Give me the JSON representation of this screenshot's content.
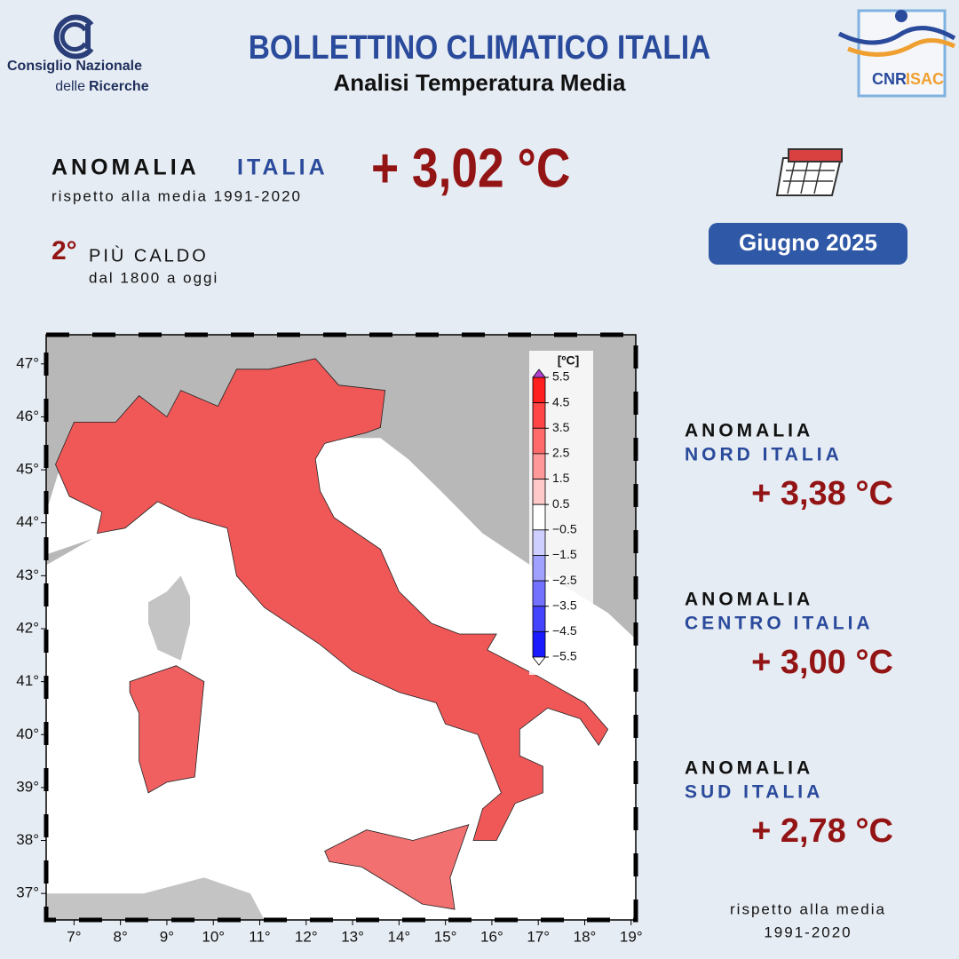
{
  "logo_left": {
    "line1": "Consiglio Nazionale",
    "line2a": "delle",
    "line2b": "Ricerche"
  },
  "header": {
    "title": "BOLLETTINO CLIMATICO ITALIA",
    "subtitle": "Analisi Temperatura Media"
  },
  "logo_right": {
    "cnr": "CNR",
    "isac": "ISAC"
  },
  "summary": {
    "label": "ANOMALIA",
    "region": "ITALIA",
    "value": "+ 3,02 °C",
    "reference": "rispetto alla media 1991-2020",
    "rank": "2°",
    "rank_text": "PIÙ CALDO",
    "rank_since": "dal 1800 a oggi"
  },
  "period": "Giugno 2025",
  "regions": [
    {
      "label": "ANOMALIA",
      "name": "NORD ITALIA",
      "value": "+ 3,38 °C"
    },
    {
      "label": "ANOMALIA",
      "name": "CENTRO ITALIA",
      "value": "+ 3,00 °C"
    },
    {
      "label": "ANOMALIA",
      "name": "SUD ITALIA",
      "value": "+ 2,78 °C"
    }
  ],
  "footnote": {
    "line1": "rispetto alla media",
    "line2": "1991-2020"
  },
  "map": {
    "xlim": [
      6.4,
      19.1
    ],
    "ylim": [
      36.5,
      47.55
    ],
    "xticks": [
      {
        "value": 7,
        "label": "7°"
      },
      {
        "value": 8,
        "label": "8°"
      },
      {
        "value": 9,
        "label": "9°"
      },
      {
        "value": 10,
        "label": "10°"
      },
      {
        "value": 11,
        "label": "11°"
      },
      {
        "value": 12,
        "label": "12°"
      },
      {
        "value": 13,
        "label": "13°"
      },
      {
        "value": 14,
        "label": "14°"
      },
      {
        "value": 15,
        "label": "15°"
      },
      {
        "value": 16,
        "label": "16°"
      },
      {
        "value": 17,
        "label": "17°"
      },
      {
        "value": 18,
        "label": "18°"
      },
      {
        "value": 19,
        "label": "19°"
      }
    ],
    "yticks": [
      {
        "value": 37,
        "label": "37°"
      },
      {
        "value": 38,
        "label": "38°"
      },
      {
        "value": 39,
        "label": "39°"
      },
      {
        "value": 40,
        "label": "40°"
      },
      {
        "value": 41,
        "label": "41°"
      },
      {
        "value": 42,
        "label": "42°"
      },
      {
        "value": 43,
        "label": "43°"
      },
      {
        "value": 44,
        "label": "44°"
      },
      {
        "value": 45,
        "label": "45°"
      },
      {
        "value": 46,
        "label": "46°"
      },
      {
        "value": 47,
        "label": "47°"
      }
    ],
    "colorbar": {
      "unit": "[ºC]",
      "levels": [
        5.5,
        4.5,
        3.5,
        2.5,
        1.5,
        0.5,
        {
          "value": -0.5,
          "label": "−0.5"
        },
        {
          "value": -1.5,
          "label": "−1.5"
        },
        {
          "value": -2.5,
          "label": "−2.5"
        },
        {
          "value": -3.5,
          "label": "−3.5"
        },
        {
          "value": -4.5,
          "label": "−4.5"
        },
        {
          "value": -5.5,
          "label": "−5.5"
        }
      ],
      "colors": [
        "#ff1f1f",
        "#ff4545",
        "#ff6b6b",
        "#ff9898",
        "#ffc9c9",
        "#ffffff",
        "#cfcfff",
        "#a0a0ff",
        "#7272ff",
        "#4444ff",
        "#1a1aff"
      ]
    }
  }
}
